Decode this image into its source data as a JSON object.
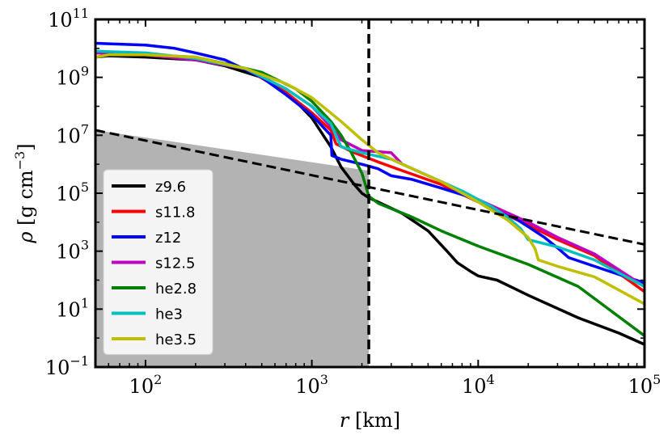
{
  "chart_data": {
    "type": "line",
    "xscale": "log",
    "yscale": "log",
    "xlim": [
      50,
      100000
    ],
    "ylim": [
      0.1,
      100000000000
    ],
    "xlabel_symbol": "r",
    "xlabel_unit": "[km]",
    "ylabel_symbol": "ρ",
    "ylabel_unit": "[g cm",
    "ylabel_unit_exp": "−3",
    "ylabel_unit_close": "]",
    "x_ticks": [
      {
        "value": 100,
        "base": "10",
        "exp": "2"
      },
      {
        "value": 1000,
        "base": "10",
        "exp": "3"
      },
      {
        "value": 10000,
        "base": "10",
        "exp": "4"
      },
      {
        "value": 100000,
        "base": "10",
        "exp": "5"
      }
    ],
    "y_ticks": [
      {
        "value": 0.1,
        "base": "10",
        "exp": "−1"
      },
      {
        "value": 10,
        "base": "10",
        "exp": "1"
      },
      {
        "value": 1000,
        "base": "10",
        "exp": "3"
      },
      {
        "value": 100000,
        "base": "10",
        "exp": "5"
      },
      {
        "value": 10000000,
        "base": "10",
        "exp": "7"
      },
      {
        "value": 1000000000,
        "base": "10",
        "exp": "9"
      },
      {
        "value": 100000000000,
        "base": "10",
        "exp": "11"
      }
    ],
    "vertical_line": {
      "x": 2200
    },
    "dashed_line": {
      "points": [
        [
          50,
          15000000
        ],
        [
          100000,
          1700
        ]
      ]
    },
    "shaded_region": {
      "points": [
        [
          50,
          0.1
        ],
        [
          50,
          15000000
        ],
        [
          2200,
          600000
        ],
        [
          2200,
          0.1
        ]
      ],
      "color": "#b3b3b3"
    },
    "legend_position": "lower-left",
    "series": [
      {
        "name": "z9.6",
        "color": "#000000",
        "points": [
          [
            50,
            5000000000
          ],
          [
            60,
            5500000000
          ],
          [
            100,
            5000000000
          ],
          [
            200,
            4000000000
          ],
          [
            300,
            2500000000
          ],
          [
            500,
            1000000000
          ],
          [
            800,
            150000000
          ],
          [
            1000,
            40000000
          ],
          [
            1300,
            4000000
          ],
          [
            1500,
            800000
          ],
          [
            1800,
            200000
          ],
          [
            2000,
            100000
          ],
          [
            2200,
            70000
          ],
          [
            2500,
            50000
          ],
          [
            3500,
            20000
          ],
          [
            5000,
            5000
          ],
          [
            6500,
            1000
          ],
          [
            7500,
            400
          ],
          [
            9000,
            200
          ],
          [
            10000,
            140
          ],
          [
            13000,
            100
          ],
          [
            20000,
            30
          ],
          [
            40000,
            5
          ],
          [
            70000,
            1.5
          ],
          [
            100000,
            0.6
          ]
        ]
      },
      {
        "name": "s11.8",
        "color": "#ff0000",
        "points": [
          [
            50,
            7000000000
          ],
          [
            100,
            6000000000
          ],
          [
            200,
            4000000000
          ],
          [
            400,
            2000000000
          ],
          [
            700,
            300000000
          ],
          [
            1000,
            60000000
          ],
          [
            1300,
            15000000
          ],
          [
            1400,
            5000000
          ],
          [
            1800,
            2500000
          ],
          [
            2500,
            1200000
          ],
          [
            3500,
            600000
          ],
          [
            6000,
            200000
          ],
          [
            10000,
            50000
          ],
          [
            20000,
            8000
          ],
          [
            30000,
            2500
          ],
          [
            50000,
            700
          ],
          [
            100000,
            40
          ]
        ]
      },
      {
        "name": "z12",
        "color": "#0000ff",
        "points": [
          [
            50,
            15000000000
          ],
          [
            100,
            13000000000
          ],
          [
            150,
            10000000000
          ],
          [
            200,
            7000000000
          ],
          [
            300,
            4000000000
          ],
          [
            500,
            1000000000
          ],
          [
            700,
            250000000
          ],
          [
            1000,
            50000000
          ],
          [
            1300,
            10000000
          ],
          [
            1320,
            2000000
          ],
          [
            1500,
            1500000
          ],
          [
            2000,
            1000000
          ],
          [
            2500,
            700000
          ],
          [
            3000,
            400000
          ],
          [
            4000,
            300000
          ],
          [
            6000,
            150000
          ],
          [
            10000,
            60000
          ],
          [
            15000,
            20000
          ],
          [
            20000,
            7000
          ],
          [
            25000,
            3000
          ],
          [
            30000,
            1300
          ],
          [
            35000,
            600
          ],
          [
            50000,
            300
          ],
          [
            100000,
            80
          ]
        ]
      },
      {
        "name": "s12.5",
        "color": "#bf00bf",
        "points": [
          [
            50,
            7000000000
          ],
          [
            100,
            6000000000
          ],
          [
            200,
            4000000000
          ],
          [
            400,
            2000000000
          ],
          [
            700,
            400000000
          ],
          [
            1000,
            100000000
          ],
          [
            1300,
            20000000
          ],
          [
            1500,
            7000000
          ],
          [
            2000,
            3000000
          ],
          [
            3000,
            2500000
          ],
          [
            3500,
            1000000
          ],
          [
            6000,
            250000
          ],
          [
            10000,
            60000
          ],
          [
            20000,
            10000
          ],
          [
            30000,
            3000
          ],
          [
            50000,
            800
          ],
          [
            100000,
            60
          ]
        ]
      },
      {
        "name": "he2.8",
        "color": "#008000",
        "points": [
          [
            50,
            5000000000
          ],
          [
            60,
            6000000000
          ],
          [
            100,
            6000000000
          ],
          [
            200,
            5000000000
          ],
          [
            300,
            3000000000
          ],
          [
            500,
            1500000000
          ],
          [
            800,
            400000000
          ],
          [
            1000,
            150000000
          ],
          [
            1300,
            30000000
          ],
          [
            1500,
            10000000
          ],
          [
            1700,
            3000000
          ],
          [
            2000,
            500000
          ],
          [
            2200,
            80000
          ],
          [
            2500,
            45000
          ],
          [
            4000,
            15000
          ],
          [
            6000,
            5000
          ],
          [
            10000,
            1500
          ],
          [
            20000,
            350
          ],
          [
            40000,
            60
          ],
          [
            100000,
            1.2
          ]
        ]
      },
      {
        "name": "he3",
        "color": "#00bfbf",
        "points": [
          [
            50,
            8000000000
          ],
          [
            100,
            7000000000
          ],
          [
            200,
            4500000000
          ],
          [
            400,
            2000000000
          ],
          [
            700,
            400000000
          ],
          [
            1000,
            100000000
          ],
          [
            1300,
            25000000
          ],
          [
            1500,
            4000000
          ],
          [
            2000,
            2500000
          ],
          [
            3000,
            1500000
          ],
          [
            5000,
            400000
          ],
          [
            8000,
            120000
          ],
          [
            12000,
            35000
          ],
          [
            15000,
            15000
          ],
          [
            18000,
            6000
          ],
          [
            20000,
            2500
          ],
          [
            30000,
            1400
          ],
          [
            50000,
            500
          ],
          [
            100000,
            60
          ]
        ]
      },
      {
        "name": "he3.5",
        "color": "#bfbf00",
        "points": [
          [
            50,
            5000000000
          ],
          [
            60,
            6000000000
          ],
          [
            100,
            6000000000
          ],
          [
            200,
            5000000000
          ],
          [
            400,
            2000000000
          ],
          [
            700,
            600000000
          ],
          [
            1000,
            200000000
          ],
          [
            1500,
            30000000
          ],
          [
            2000,
            7000000
          ],
          [
            2500,
            2500000
          ],
          [
            3500,
            1000000
          ],
          [
            6000,
            250000
          ],
          [
            10000,
            50000
          ],
          [
            15000,
            12000
          ],
          [
            20000,
            3000
          ],
          [
            22000,
            1200
          ],
          [
            23000,
            500
          ],
          [
            30000,
            300
          ],
          [
            50000,
            130
          ],
          [
            100000,
            15
          ]
        ]
      }
    ]
  }
}
